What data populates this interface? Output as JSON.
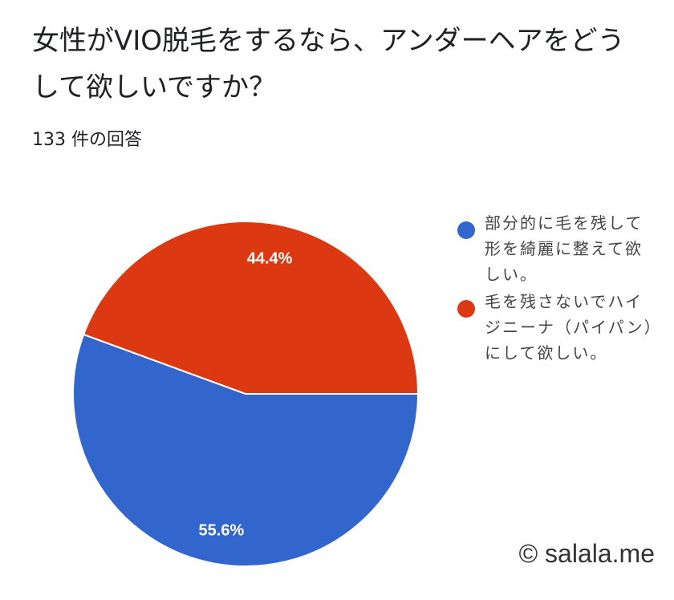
{
  "form": {
    "question": "女性がVIO脱毛をするなら、アンダーヘアをどうして欲しいですか？",
    "response_count": "133 件の回答"
  },
  "chart_data": {
    "type": "pie",
    "slices": [
      {
        "label": "部分的に毛を残して形を綺麗に整えて欲しい。",
        "value": 55.6,
        "display": "55.6%",
        "color": "#3366cc"
      },
      {
        "label": "毛を残さないでハイジニーナ（パイパン）にして欲しい。",
        "value": 44.4,
        "display": "44.4%",
        "color": "#dc3912"
      }
    ],
    "legend_position": "right"
  },
  "watermark": "© salala.me"
}
